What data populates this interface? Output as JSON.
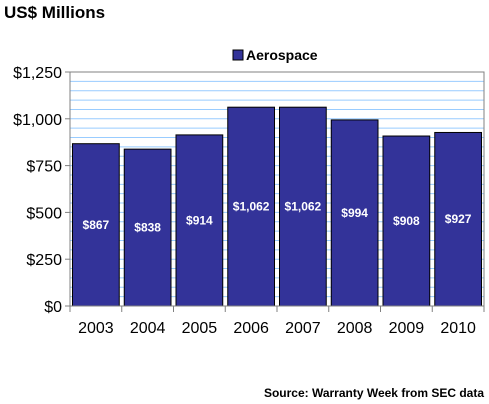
{
  "chart_data": {
    "type": "bar",
    "title": "US$ Millions",
    "categories": [
      "2003",
      "2004",
      "2005",
      "2006",
      "2007",
      "2008",
      "2009",
      "2010"
    ],
    "series": [
      {
        "name": "Aerospace",
        "values": [
          867,
          838,
          914,
          1062,
          1062,
          994,
          908,
          927
        ],
        "labels": [
          "$867",
          "$838",
          "$914",
          "$1,062",
          "$1,062",
          "$994",
          "$908",
          "$927"
        ]
      }
    ],
    "ylim": [
      0,
      1250
    ],
    "yticks": [
      0,
      250,
      500,
      750,
      1000,
      1250
    ],
    "ytick_labels": [
      "$0",
      "$250",
      "$500",
      "$750",
      "$1,000",
      "$1,250"
    ],
    "grid": true,
    "legend_position": "top-center",
    "source": "Source: Warranty Week from SEC data",
    "colors": {
      "bar_fill": "#333399",
      "bar_stroke": "#000000",
      "grid": "#99ccff",
      "axis": "#808080"
    }
  }
}
